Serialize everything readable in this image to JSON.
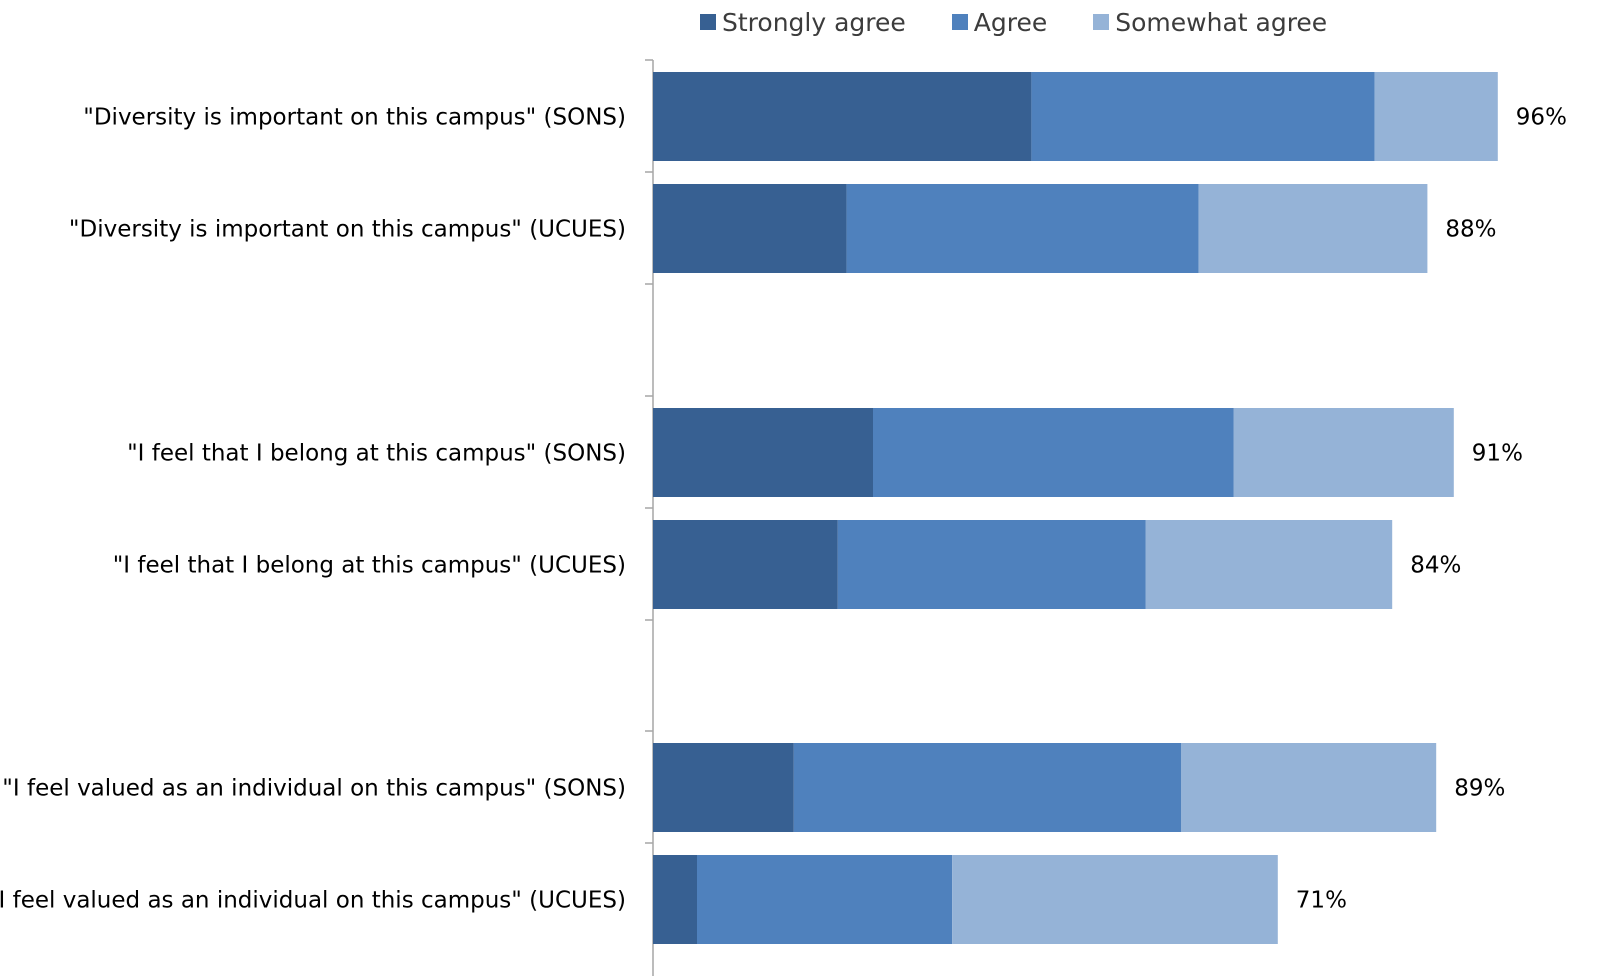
{
  "colors": {
    "strongly_agree": "#376092",
    "agree": "#4f81bd",
    "somewhat_agree": "#95b3d7",
    "axis": "#a6a6a6"
  },
  "legend": [
    {
      "label": "Strongly agree"
    },
    {
      "label": "Agree"
    },
    {
      "label": "Somewhat agree"
    }
  ],
  "chart_data": {
    "type": "bar",
    "orientation": "horizontal",
    "stacked": true,
    "categories": [
      "\"Diversity is important on this campus\" (SONS)",
      "\"Diversity is important on this campus\" (UCUES)",
      "\"I feel that I belong at this campus\" (SONS)",
      "\"I feel that I belong at this campus\" (UCUES)",
      "\"I feel valued as an individual on this campus\" (SONS)",
      "\"I feel valued as an individual on this campus\" (UCUES)"
    ],
    "series": [
      {
        "name": "Strongly agree",
        "values": [
          43,
          22,
          25,
          21,
          16,
          5
        ]
      },
      {
        "name": "Agree",
        "values": [
          39,
          40,
          41,
          35,
          44,
          29
        ]
      },
      {
        "name": "Somewhat agree",
        "values": [
          14,
          26,
          25,
          28,
          29,
          37
        ]
      }
    ],
    "totals": [
      "96%",
      "88%",
      "91%",
      "84%",
      "89%",
      "71%"
    ],
    "legend_position": "top",
    "xlim": [
      0,
      100
    ],
    "grid": false
  }
}
